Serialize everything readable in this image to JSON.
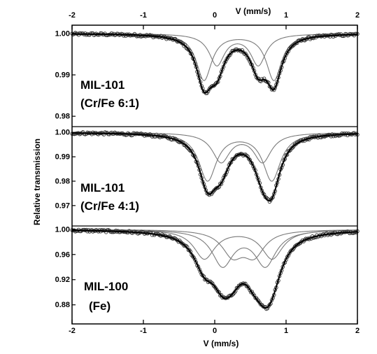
{
  "chart_data": {
    "type": "line",
    "x_axis": {
      "label": "V (mm/s)",
      "range": [
        -2,
        2
      ],
      "ticks": [
        "-2",
        "-1",
        "0",
        "1",
        "2"
      ]
    },
    "top_x_axis": {
      "label": "V (mm/s)",
      "range": [
        -2,
        2
      ],
      "ticks": [
        "-2",
        "-1",
        "0",
        "1",
        "2"
      ]
    },
    "y_axis_label": "Relative transmission",
    "panels": [
      {
        "label_line1": "MIL-101",
        "label_line2": "(Cr/Fe 6:1)",
        "ylim": [
          0.978,
          1.0015
        ],
        "yticks": [
          "1.00",
          "0.99",
          "0.98"
        ],
        "ytick_values": [
          1.0,
          0.99,
          0.98
        ],
        "baseline": 1.0,
        "fit_components": [
          {
            "type": "doublet",
            "center": 0.34,
            "splitting": 0.98,
            "depth": 0.0112,
            "width": 0.26
          },
          {
            "type": "doublet",
            "center": 0.32,
            "splitting": 0.58,
            "depth": 0.0075,
            "width": 0.26
          }
        ],
        "experimental_noise": 0.0003
      },
      {
        "label_line1": "MIL-101",
        "label_line2": "(Cr/Fe 4:1)",
        "ylim": [
          0.9625,
          1.0015
        ],
        "yticks": [
          "1.00",
          "0.99",
          "0.98",
          "0.97"
        ],
        "ytick_values": [
          1.0,
          0.99,
          0.98,
          0.97
        ],
        "baseline": 1.0,
        "fit_components": [
          {
            "type": "doublet",
            "center": 0.35,
            "splitting": 0.9,
            "depth": 0.0195,
            "width": 0.3
          },
          {
            "type": "doublet",
            "center": 0.38,
            "splitting": 0.58,
            "depth": 0.0118,
            "width": 0.3
          }
        ],
        "experimental_noise": 0.0005
      },
      {
        "label_line1": "MIL-100",
        "label_line2": "(Fe)",
        "ylim": [
          0.853,
          1.002
        ],
        "yticks": [
          "1.00",
          "0.96",
          "0.92",
          "0.88"
        ],
        "ytick_values": [
          1.0,
          0.96,
          0.92,
          0.88
        ],
        "baseline": 1.0,
        "fit_components": [
          {
            "type": "doublet",
            "center": 0.41,
            "splitting": 0.6,
            "depth": 0.056,
            "width": 0.36
          },
          {
            "type": "doublet",
            "center": 0.33,
            "splitting": 0.95,
            "depth": 0.046,
            "width": 0.36
          },
          {
            "type": "doublet",
            "center": 0.4,
            "splitting": 0.3,
            "depth": 0.038,
            "width": 0.36
          }
        ],
        "experimental_noise": 0.0018
      }
    ]
  }
}
